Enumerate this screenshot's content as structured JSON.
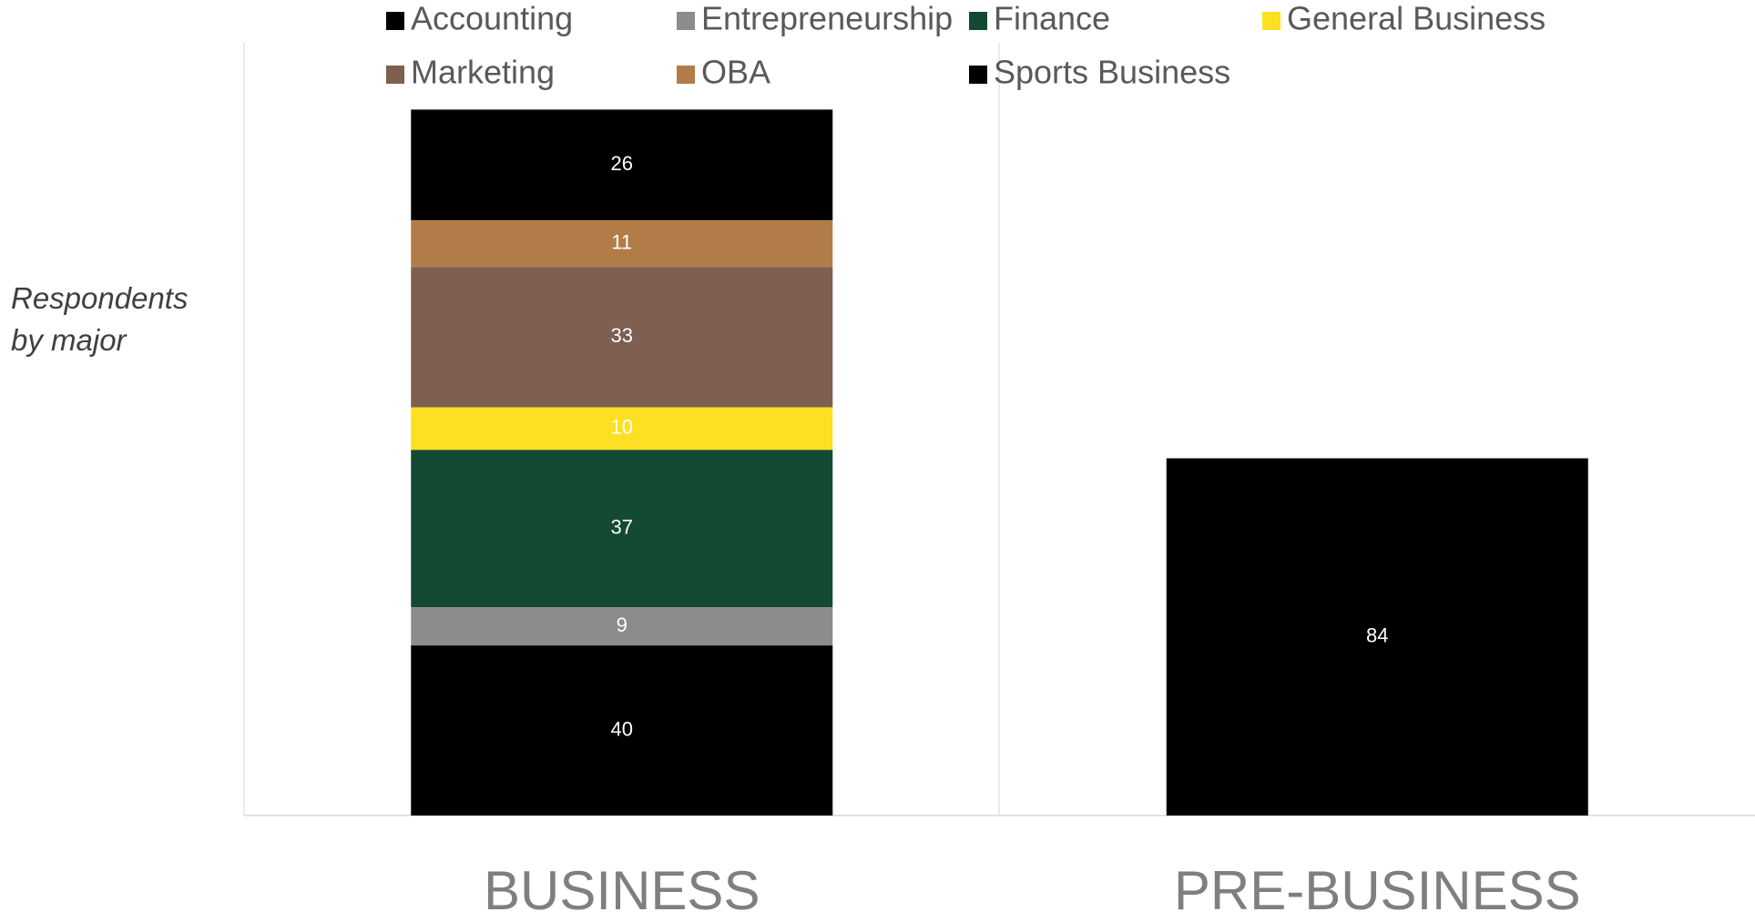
{
  "chart_data": {
    "type": "stacked_bar",
    "y_label": "Respondents by major",
    "categories": [
      "BUSINESS",
      "PRE-BUSINESS"
    ],
    "series": [
      {
        "name": "Accounting",
        "color": "#000000",
        "values": [
          40,
          84
        ]
      },
      {
        "name": "Entrepreneurship",
        "color": "#8c8c8c",
        "values": [
          9,
          null
        ]
      },
      {
        "name": "Finance",
        "color": "#144a34",
        "values": [
          37,
          null
        ]
      },
      {
        "name": "General Business",
        "color": "#fde021",
        "values": [
          10,
          null
        ]
      },
      {
        "name": "Marketing",
        "color": "#7e5f50",
        "values": [
          33,
          null
        ]
      },
      {
        "name": "OBA",
        "color": "#b27c48",
        "values": [
          11,
          null
        ]
      },
      {
        "name": "Sports Business",
        "color": "#000000",
        "values": [
          26,
          null
        ]
      }
    ],
    "ylim": [
      0,
      180
    ],
    "legend": "top"
  }
}
